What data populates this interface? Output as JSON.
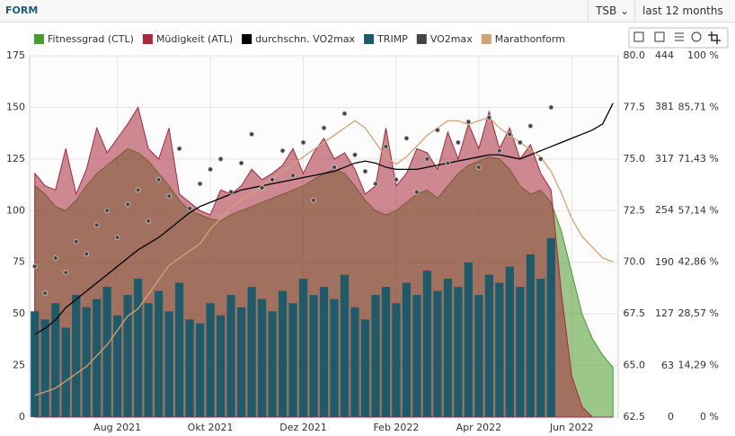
{
  "header": {
    "title": "FORM",
    "metric": "TSB",
    "range": "last 12 months"
  },
  "chart_data": {
    "type": "combo",
    "categories": [
      null,
      null,
      null,
      null,
      null,
      null,
      null,
      null,
      "Aug 2021",
      null,
      null,
      null,
      null,
      null,
      null,
      null,
      null,
      "Okt 2021",
      null,
      null,
      null,
      null,
      null,
      null,
      null,
      null,
      "Dez 2021",
      null,
      null,
      null,
      null,
      null,
      null,
      null,
      null,
      "Feb 2022",
      null,
      null,
      null,
      null,
      null,
      null,
      null,
      "Apr 2022",
      null,
      null,
      null,
      null,
      null,
      null,
      null,
      null,
      "Jun 2022",
      null,
      null,
      null,
      null
    ],
    "ylim": [
      0,
      175
    ],
    "yticks": [
      0,
      25,
      50,
      75,
      100,
      125,
      150,
      175
    ],
    "y2lim": [
      62.5,
      80
    ],
    "y2ticks": [
      62.5,
      {
        "value": 65,
        "label": "65.0"
      },
      67.5,
      {
        "value": 70,
        "label": "70.0"
      },
      72.5,
      {
        "value": 75,
        "label": "75.0"
      },
      77.5,
      {
        "value": 80,
        "label": "80.0"
      }
    ],
    "y3lim": [
      0,
      444
    ],
    "y3ticks": [
      0,
      63,
      127,
      190,
      254,
      317,
      381,
      444
    ],
    "y4lim": [
      0,
      100
    ],
    "y4ticks": [
      {
        "value": 0,
        "label": "0 %"
      },
      {
        "value": 14.29,
        "label": "14,29 %"
      },
      {
        "value": 28.57,
        "label": "28,57 %"
      },
      {
        "value": 42.86,
        "label": "42,86 %"
      },
      {
        "value": 57.14,
        "label": "57,14 %"
      },
      {
        "value": 71.43,
        "label": "71,43 %"
      },
      {
        "value": 85.71,
        "label": "85,71 %"
      },
      {
        "value": 100,
        "label": "100 %"
      }
    ],
    "grid": true,
    "series": [
      {
        "name": "Fitnessgrad (CTL)",
        "type": "area",
        "axis": "y",
        "color": "#4a9a2e",
        "values": [
          112,
          108,
          102,
          100,
          105,
          112,
          118,
          122,
          126,
          130,
          128,
          124,
          118,
          112,
          105,
          100,
          98,
          96,
          95,
          98,
          100,
          102,
          104,
          106,
          108,
          110,
          112,
          115,
          118,
          120,
          118,
          112,
          105,
          100,
          98,
          100,
          104,
          108,
          110,
          106,
          112,
          118,
          122,
          124,
          126,
          125,
          120,
          112,
          108,
          110,
          104,
          90,
          70,
          50,
          38,
          30,
          24
        ]
      },
      {
        "name": "Müdigkeit (ATL)",
        "type": "area",
        "axis": "y",
        "color": "#a5283b",
        "values": [
          118,
          112,
          110,
          130,
          108,
          120,
          140,
          128,
          135,
          142,
          150,
          130,
          125,
          140,
          108,
          104,
          100,
          98,
          110,
          108,
          112,
          120,
          115,
          118,
          122,
          130,
          118,
          128,
          135,
          125,
          128,
          120,
          108,
          112,
          140,
          112,
          118,
          130,
          128,
          120,
          138,
          125,
          142,
          130,
          148,
          130,
          140,
          125,
          132,
          118,
          110,
          60,
          20,
          5,
          0,
          0,
          0
        ]
      },
      {
        "name": "durchschn. VO2max",
        "type": "line",
        "axis": "y2",
        "color": "#000000",
        "values": [
          66.5,
          66.8,
          67.2,
          67.8,
          68.2,
          68.6,
          69.0,
          69.4,
          69.8,
          70.2,
          70.6,
          70.9,
          71.2,
          71.6,
          72.0,
          72.4,
          72.7,
          72.9,
          73.1,
          73.3,
          73.5,
          73.6,
          73.7,
          73.8,
          73.9,
          74.0,
          74.1,
          74.2,
          74.3,
          74.4,
          74.6,
          74.8,
          74.9,
          74.8,
          74.6,
          74.5,
          74.5,
          74.5,
          74.6,
          74.7,
          74.8,
          74.9,
          75.0,
          75.1,
          75.2,
          75.2,
          75.1,
          75.0,
          75.2,
          75.4,
          75.6,
          75.8,
          76.0,
          76.2,
          76.4,
          76.7,
          77.7
        ]
      },
      {
        "name": "TRIMP",
        "type": "bar",
        "axis": "y3",
        "color": "#1e5b6a",
        "values": [
          130,
          120,
          140,
          110,
          150,
          135,
          145,
          160,
          125,
          150,
          170,
          140,
          155,
          130,
          165,
          120,
          115,
          140,
          125,
          150,
          135,
          160,
          145,
          130,
          155,
          140,
          170,
          150,
          160,
          145,
          175,
          135,
          120,
          150,
          160,
          140,
          165,
          150,
          180,
          155,
          170,
          160,
          190,
          150,
          175,
          165,
          185,
          160,
          200,
          170,
          220,
          null,
          null,
          null,
          null,
          null,
          null
        ]
      },
      {
        "name": "VO2max",
        "type": "scatter",
        "axis": "y2",
        "color": "#444444",
        "values": [
          69.8,
          68.5,
          70.2,
          69.5,
          71.0,
          70.4,
          71.8,
          72.5,
          71.2,
          72.8,
          73.5,
          72.0,
          74.0,
          73.2,
          75.5,
          72.6,
          73.8,
          74.5,
          75.0,
          73.4,
          74.8,
          76.2,
          73.6,
          74.0,
          75.4,
          74.2,
          75.8,
          73.0,
          76.5,
          74.6,
          77.2,
          75.2,
          74.4,
          73.8,
          75.6,
          74.0,
          76.0,
          73.4,
          75.0,
          76.4,
          74.8,
          75.8,
          76.8,
          74.6,
          77.0,
          75.4,
          76.2,
          75.8,
          76.6,
          75.0,
          77.5,
          null,
          null,
          null,
          null,
          null,
          null
        ]
      },
      {
        "name": "Marathonform",
        "type": "line",
        "axis": "y4",
        "color": "#d4a373",
        "values": [
          6,
          7,
          8,
          10,
          12,
          14,
          17,
          20,
          24,
          28,
          30,
          34,
          38,
          42,
          44,
          46,
          48,
          52,
          55,
          58,
          60,
          62,
          64,
          66,
          68,
          70,
          72,
          74,
          76,
          78,
          80,
          82,
          80,
          76,
          72,
          70,
          72,
          75,
          78,
          80,
          82,
          82,
          81,
          82,
          83,
          80,
          78,
          76,
          74,
          72,
          68,
          62,
          55,
          50,
          47,
          44,
          43
        ]
      }
    ]
  }
}
